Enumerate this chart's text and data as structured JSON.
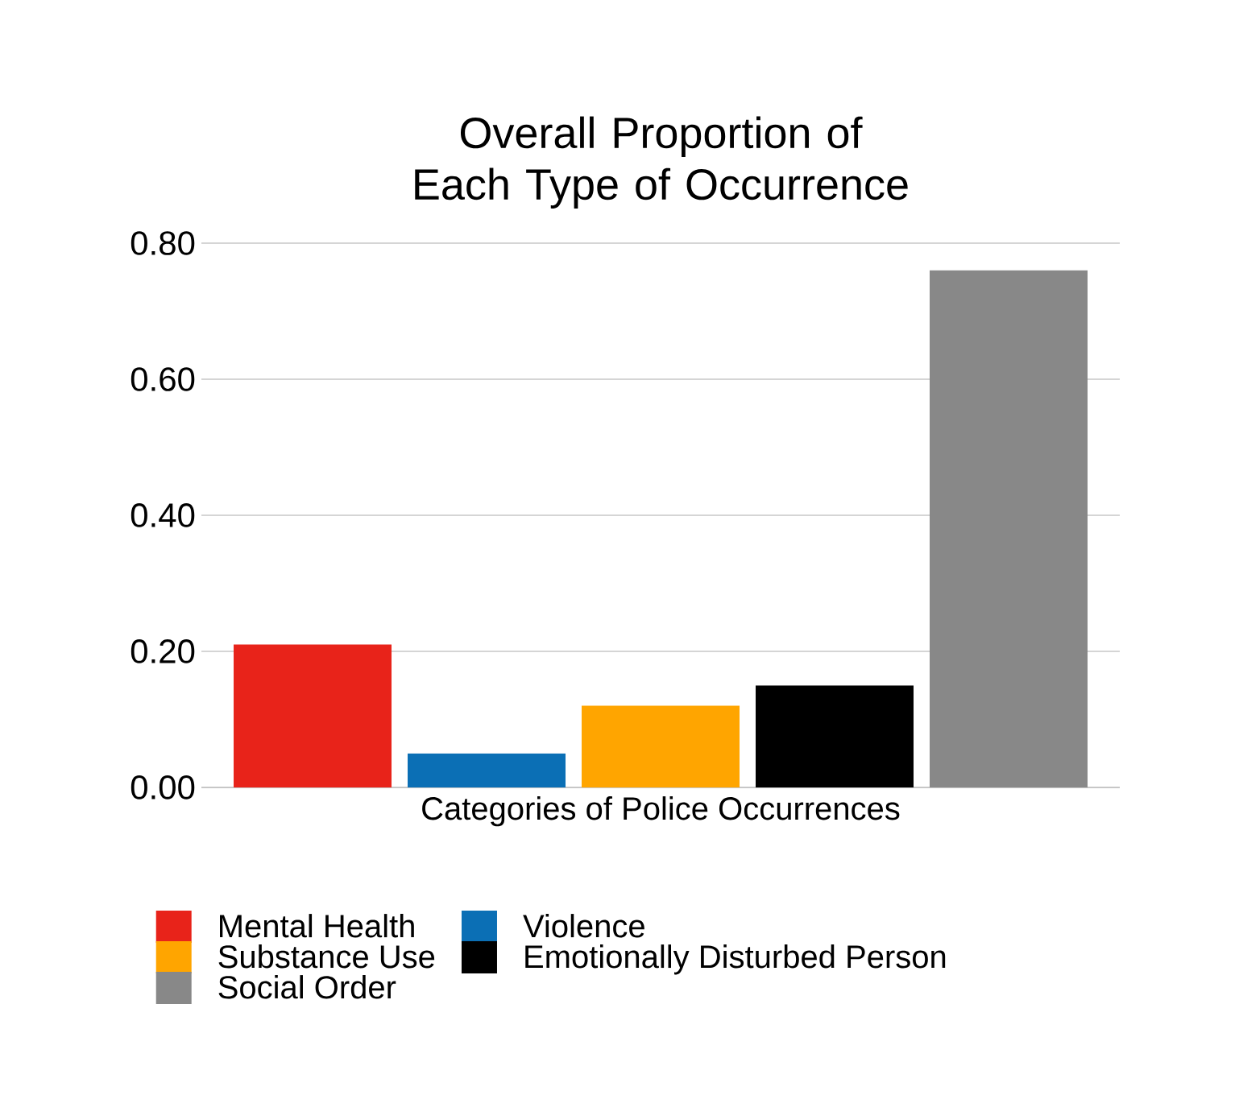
{
  "chart_data": {
    "type": "bar",
    "title": "Overall Proportion of Each Type of Occurrence",
    "xlabel": "Categories of Police Occurrences",
    "categories": [
      null
    ],
    "series": [
      {
        "name": "Mental Health",
        "color": "#e8231a",
        "values": [
          0.21
        ]
      },
      {
        "name": "Violence",
        "color": "#0b6fb5",
        "values": [
          0.05
        ]
      },
      {
        "name": "Substance Use",
        "color": "#ffa500",
        "values": [
          0.12
        ]
      },
      {
        "name": "Emotionally Disturbed Person",
        "color": "#000000",
        "values": [
          0.15
        ]
      },
      {
        "name": "Social Order",
        "color": "#888888",
        "values": [
          0.76
        ]
      }
    ],
    "ylim": [
      0,
      0.8
    ],
    "yticks": [
      {
        "value": 0,
        "label": "0.00"
      },
      {
        "value": 0.2,
        "label": "0.20"
      },
      {
        "value": 0.4,
        "label": "0.40"
      },
      {
        "value": 0.6,
        "label": "0.60"
      },
      {
        "value": 0.8,
        "label": "0.80"
      }
    ],
    "grid": "y",
    "legend": "bottom"
  }
}
